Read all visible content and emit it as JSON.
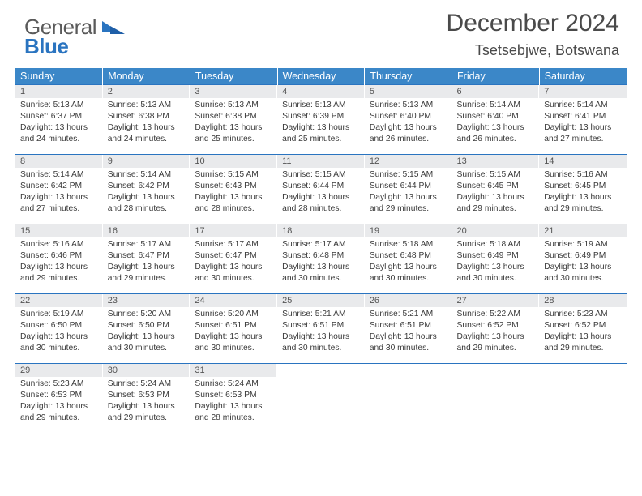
{
  "brand": {
    "part1": "General",
    "part2": "Blue"
  },
  "title": "December 2024",
  "subtitle": "Tsetsebjwe, Botswana",
  "dow": [
    "Sunday",
    "Monday",
    "Tuesday",
    "Wednesday",
    "Thursday",
    "Friday",
    "Saturday"
  ],
  "colors": {
    "header_bg": "#3b87c8",
    "header_text": "#ffffff",
    "daynum_bg": "#e9eaec",
    "row_border": "#2a74c0",
    "body_text": "#3a3a3a",
    "brand_blue": "#2a74c0"
  },
  "typography": {
    "title_fontsize": 30,
    "subtitle_fontsize": 18,
    "dow_fontsize": 12.5,
    "daynum_fontsize": 11,
    "body_fontsize": 10.3
  },
  "labels": {
    "sunrise": "Sunrise:",
    "sunset": "Sunset:",
    "daylight": "Daylight:"
  },
  "weeks": [
    [
      {
        "n": "1",
        "sr": "5:13 AM",
        "ss": "6:37 PM",
        "dl": "13 hours and 24 minutes."
      },
      {
        "n": "2",
        "sr": "5:13 AM",
        "ss": "6:38 PM",
        "dl": "13 hours and 24 minutes."
      },
      {
        "n": "3",
        "sr": "5:13 AM",
        "ss": "6:38 PM",
        "dl": "13 hours and 25 minutes."
      },
      {
        "n": "4",
        "sr": "5:13 AM",
        "ss": "6:39 PM",
        "dl": "13 hours and 25 minutes."
      },
      {
        "n": "5",
        "sr": "5:13 AM",
        "ss": "6:40 PM",
        "dl": "13 hours and 26 minutes."
      },
      {
        "n": "6",
        "sr": "5:14 AM",
        "ss": "6:40 PM",
        "dl": "13 hours and 26 minutes."
      },
      {
        "n": "7",
        "sr": "5:14 AM",
        "ss": "6:41 PM",
        "dl": "13 hours and 27 minutes."
      }
    ],
    [
      {
        "n": "8",
        "sr": "5:14 AM",
        "ss": "6:42 PM",
        "dl": "13 hours and 27 minutes."
      },
      {
        "n": "9",
        "sr": "5:14 AM",
        "ss": "6:42 PM",
        "dl": "13 hours and 28 minutes."
      },
      {
        "n": "10",
        "sr": "5:15 AM",
        "ss": "6:43 PM",
        "dl": "13 hours and 28 minutes."
      },
      {
        "n": "11",
        "sr": "5:15 AM",
        "ss": "6:44 PM",
        "dl": "13 hours and 28 minutes."
      },
      {
        "n": "12",
        "sr": "5:15 AM",
        "ss": "6:44 PM",
        "dl": "13 hours and 29 minutes."
      },
      {
        "n": "13",
        "sr": "5:15 AM",
        "ss": "6:45 PM",
        "dl": "13 hours and 29 minutes."
      },
      {
        "n": "14",
        "sr": "5:16 AM",
        "ss": "6:45 PM",
        "dl": "13 hours and 29 minutes."
      }
    ],
    [
      {
        "n": "15",
        "sr": "5:16 AM",
        "ss": "6:46 PM",
        "dl": "13 hours and 29 minutes."
      },
      {
        "n": "16",
        "sr": "5:17 AM",
        "ss": "6:47 PM",
        "dl": "13 hours and 29 minutes."
      },
      {
        "n": "17",
        "sr": "5:17 AM",
        "ss": "6:47 PM",
        "dl": "13 hours and 30 minutes."
      },
      {
        "n": "18",
        "sr": "5:17 AM",
        "ss": "6:48 PM",
        "dl": "13 hours and 30 minutes."
      },
      {
        "n": "19",
        "sr": "5:18 AM",
        "ss": "6:48 PM",
        "dl": "13 hours and 30 minutes."
      },
      {
        "n": "20",
        "sr": "5:18 AM",
        "ss": "6:49 PM",
        "dl": "13 hours and 30 minutes."
      },
      {
        "n": "21",
        "sr": "5:19 AM",
        "ss": "6:49 PM",
        "dl": "13 hours and 30 minutes."
      }
    ],
    [
      {
        "n": "22",
        "sr": "5:19 AM",
        "ss": "6:50 PM",
        "dl": "13 hours and 30 minutes."
      },
      {
        "n": "23",
        "sr": "5:20 AM",
        "ss": "6:50 PM",
        "dl": "13 hours and 30 minutes."
      },
      {
        "n": "24",
        "sr": "5:20 AM",
        "ss": "6:51 PM",
        "dl": "13 hours and 30 minutes."
      },
      {
        "n": "25",
        "sr": "5:21 AM",
        "ss": "6:51 PM",
        "dl": "13 hours and 30 minutes."
      },
      {
        "n": "26",
        "sr": "5:21 AM",
        "ss": "6:51 PM",
        "dl": "13 hours and 30 minutes."
      },
      {
        "n": "27",
        "sr": "5:22 AM",
        "ss": "6:52 PM",
        "dl": "13 hours and 29 minutes."
      },
      {
        "n": "28",
        "sr": "5:23 AM",
        "ss": "6:52 PM",
        "dl": "13 hours and 29 minutes."
      }
    ],
    [
      {
        "n": "29",
        "sr": "5:23 AM",
        "ss": "6:53 PM",
        "dl": "13 hours and 29 minutes."
      },
      {
        "n": "30",
        "sr": "5:24 AM",
        "ss": "6:53 PM",
        "dl": "13 hours and 29 minutes."
      },
      {
        "n": "31",
        "sr": "5:24 AM",
        "ss": "6:53 PM",
        "dl": "13 hours and 28 minutes."
      },
      null,
      null,
      null,
      null
    ]
  ]
}
